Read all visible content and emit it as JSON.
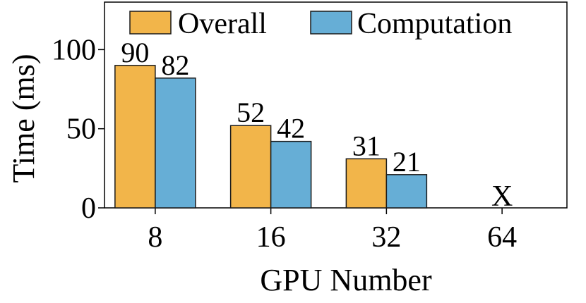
{
  "chart_data": {
    "type": "bar",
    "xlabel": "GPU Number",
    "ylabel": "Time (ms)",
    "categories": [
      "8",
      "16",
      "32",
      "64"
    ],
    "yticks": [
      0,
      50,
      100
    ],
    "ylim": [
      0,
      130
    ],
    "series": [
      {
        "name": "Overall",
        "values": [
          90,
          52,
          31,
          null
        ]
      },
      {
        "name": "Computation",
        "values": [
          82,
          42,
          21,
          null
        ]
      }
    ],
    "data_labels": {
      "Overall": [
        "90",
        "52",
        "31",
        ""
      ],
      "Computation": [
        "82",
        "42",
        "21",
        ""
      ]
    },
    "missing_marker": {
      "category": "64",
      "label": "X"
    },
    "legend": {
      "placement": "top",
      "entries": [
        "Overall",
        "Computation"
      ]
    },
    "grid": false,
    "colors": {
      "Overall": "#F2B54A",
      "Computation": "#66AED6",
      "edge": "#1a1a1a"
    }
  }
}
